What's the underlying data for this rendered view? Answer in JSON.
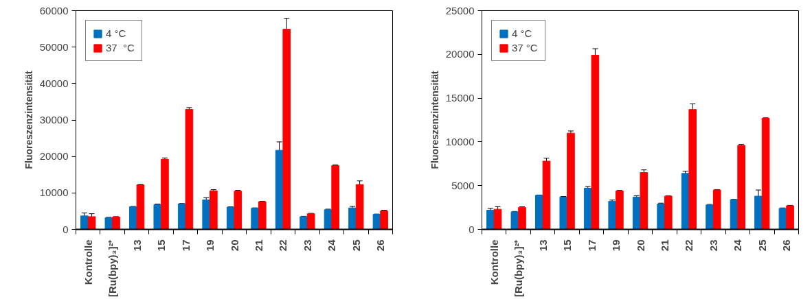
{
  "chart_data": [
    {
      "type": "bar",
      "ylabel": "Fluoreszenzintensität",
      "categories": [
        "Kontrolle",
        "[Ru(bpy)₃]²⁺",
        "13",
        "15",
        "17",
        "19",
        "20",
        "21",
        "22",
        "23",
        "24",
        "25",
        "26"
      ],
      "series": [
        {
          "name": "4 °C",
          "color": "#0070c0",
          "values": [
            3700,
            3200,
            6200,
            6800,
            7000,
            8100,
            6100,
            5800,
            21700,
            3500,
            5400,
            5900,
            4100
          ],
          "errors": [
            800,
            100,
            100,
            150,
            100,
            600,
            100,
            100,
            2300,
            100,
            150,
            400,
            100
          ]
        },
        {
          "name": "37  °C",
          "color": "#ff0000",
          "values": [
            3500,
            3400,
            12200,
            19200,
            32900,
            10600,
            10500,
            7600,
            54900,
            4300,
            17500,
            12300,
            5100
          ],
          "errors": [
            800,
            100,
            150,
            400,
            500,
            300,
            200,
            100,
            3000,
            100,
            200,
            1000,
            150
          ]
        }
      ],
      "ylim": [
        0,
        60000
      ],
      "yticks": [
        0,
        10000,
        20000,
        30000,
        40000,
        50000,
        60000
      ],
      "grid": false,
      "legend": "top left"
    },
    {
      "type": "bar",
      "ylabel": "Fluoreszenzintensität",
      "categories": [
        "Kontrolle",
        "[Ru(bpy)₃]²⁺",
        "13",
        "15",
        "17",
        "19",
        "20",
        "21",
        "22",
        "23",
        "24",
        "25",
        "26"
      ],
      "series": [
        {
          "name": "4 °C",
          "color": "#0070c0",
          "values": [
            2200,
            2000,
            3900,
            3700,
            4700,
            3200,
            3700,
            2900,
            6400,
            2800,
            3400,
            3800,
            2400
          ],
          "errors": [
            200,
            50,
            30,
            60,
            200,
            150,
            150,
            100,
            250,
            50,
            30,
            700,
            50
          ]
        },
        {
          "name": "37 °C",
          "color": "#ff0000",
          "values": [
            2300,
            2500,
            7800,
            11000,
            19900,
            4400,
            6500,
            3800,
            13700,
            4500,
            9600,
            12700,
            2700
          ],
          "errors": [
            300,
            80,
            350,
            250,
            750,
            50,
            300,
            50,
            650,
            50,
            100,
            50,
            50
          ]
        }
      ],
      "ylim": [
        0,
        25000
      ],
      "yticks": [
        0,
        5000,
        10000,
        15000,
        20000,
        25000
      ],
      "grid": false,
      "legend": "top left"
    }
  ]
}
